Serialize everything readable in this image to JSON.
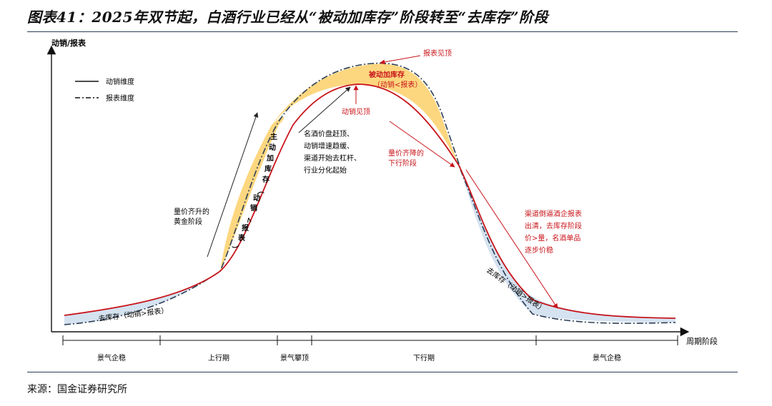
{
  "title": "图表41：2025年双节起，白酒行业已经从“被动加库存”阶段转至“去库存”阶段",
  "source": "来源：国金证券研究所",
  "axes": {
    "y_label": "动销/报表",
    "x_label": "周期阶段"
  },
  "legend": [
    {
      "label": "动销维度",
      "style": "solid"
    },
    {
      "label": "报表维度",
      "style": "dash-dot"
    }
  ],
  "annotations": {
    "report_peak": "报表见顶",
    "sales_peak": "动销见顶",
    "passive_stock_l1": "被动加库存",
    "passive_stock_l2": "（动销<报表）",
    "active_stock_chars": [
      "主",
      "动",
      "加",
      "库",
      "存",
      "（",
      "动",
      "销",
      "<",
      "报",
      "表",
      "）"
    ],
    "golden_l1": "量价齐升的",
    "golden_l2": "黄金阶段",
    "mid_note": [
      "名酒价盘赶顶、",
      "动销增速趋缓、",
      "渠道开始去杠杆、",
      "行业分化起始"
    ],
    "decline_note": [
      "量价齐降的",
      "下行阶段"
    ],
    "right_note": [
      "渠道倒逼酒企报表",
      "出清，去库存阶段",
      "价>量，名酒单品",
      "逐步价稳"
    ],
    "destock_left": "去库存（动销>报表）",
    "destock_right": "去库存（动销>报表）"
  },
  "phases": [
    "景气企稳",
    "上行期",
    "景气攀顶",
    "下行期",
    "景气企稳"
  ],
  "colors": {
    "sales_line": "#c8151b",
    "report_line": "#2c3e55",
    "fill_yellow": "#fdd77f",
    "fill_blue": "#d5e2f0",
    "accent_red": "#c8151b"
  }
}
